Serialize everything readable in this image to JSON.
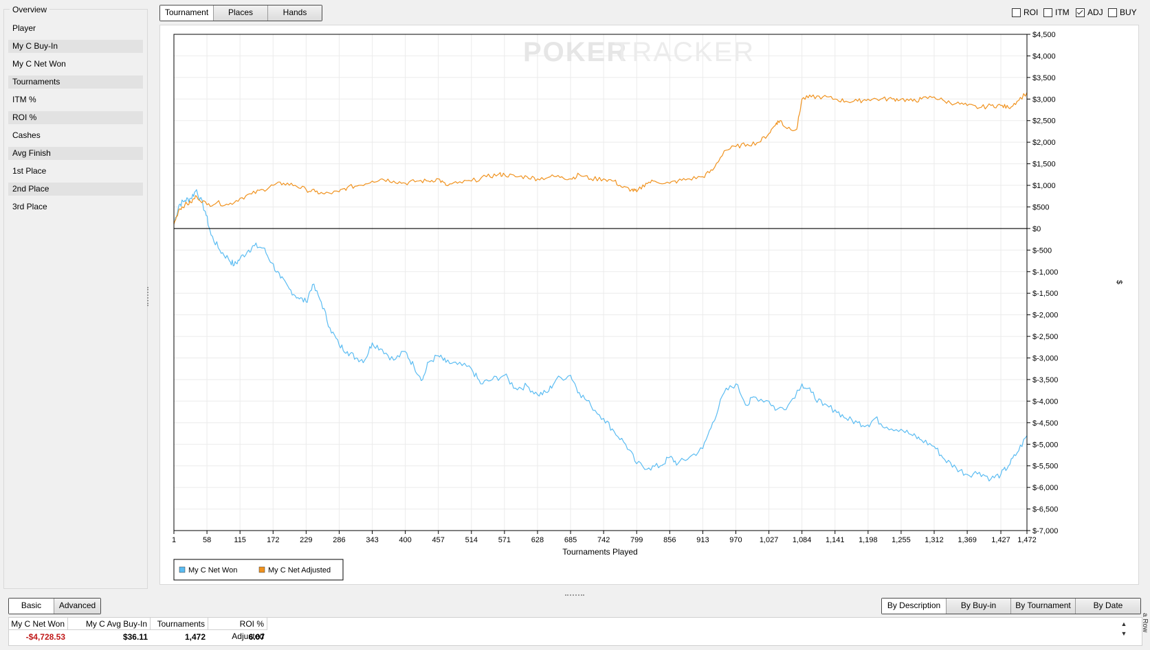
{
  "left_panel": {
    "title": "Overview",
    "stats": [
      "Player",
      "My C Buy-In",
      "My C Net Won",
      "Tournaments",
      "ITM %",
      "ROI %",
      "Cashes",
      "Avg Finish",
      "1st Place",
      "2nd Place",
      "3rd Place"
    ]
  },
  "view_tabs": {
    "tournament": "Tournament",
    "places": "Places",
    "hands": "Hands"
  },
  "options": {
    "roi": "ROI",
    "itm": "ITM",
    "adj": "ADJ",
    "buy": "BUY",
    "adj_checked": true
  },
  "watermark": {
    "poker": "POKER",
    "tracker": "TRACKER"
  },
  "chart_data": {
    "type": "line",
    "xlabel": "Tournaments Played",
    "ylabel": "$",
    "x_ticks": [
      "1",
      "58",
      "115",
      "172",
      "229",
      "286",
      "343",
      "400",
      "457",
      "514",
      "571",
      "628",
      "685",
      "742",
      "799",
      "856",
      "913",
      "970",
      "1,027",
      "1,084",
      "1,141",
      "1,198",
      "1,255",
      "1,312",
      "1,369",
      "1,427",
      "1,472"
    ],
    "y_ticks": [
      "$4,500",
      "$4,000",
      "$3,500",
      "$3,000",
      "$2,500",
      "$2,000",
      "$1,500",
      "$1,000",
      "$500",
      "$0",
      "$-500",
      "$-1,000",
      "$-1,500",
      "$-2,000",
      "$-2,500",
      "$-3,000",
      "$-3,500",
      "$-4,000",
      "$-4,500",
      "$-5,000",
      "$-5,500",
      "$-6,000",
      "$-6,500",
      "$-7,000"
    ],
    "ylim": [
      -7000,
      4500
    ],
    "xlim": [
      1,
      1472
    ],
    "grid": true,
    "legend": "bottom-left",
    "series": [
      {
        "name": "My C Net Won",
        "color": "#5bbcf2",
        "x": [
          1,
          10,
          20,
          30,
          40,
          55,
          65,
          80,
          95,
          105,
          115,
          130,
          140,
          155,
          170,
          185,
          200,
          215,
          229,
          240,
          255,
          270,
          286,
          300,
          315,
          330,
          343,
          360,
          380,
          400,
          415,
          430,
          440,
          457,
          470,
          490,
          514,
          530,
          550,
          571,
          590,
          610,
          628,
          645,
          660,
          685,
          700,
          720,
          742,
          760,
          780,
          799,
          820,
          840,
          856,
          870,
          890,
          913,
          930,
          950,
          970,
          990,
          1000,
          1027,
          1040,
          1060,
          1084,
          1100,
          1120,
          1141,
          1160,
          1180,
          1198,
          1210,
          1230,
          1255,
          1275,
          1290,
          1312,
          1330,
          1350,
          1369,
          1390,
          1410,
          1427,
          1440,
          1455,
          1472
        ],
        "y": [
          100,
          550,
          650,
          700,
          900,
          400,
          -150,
          -500,
          -700,
          -850,
          -700,
          -500,
          -400,
          -450,
          -800,
          -1150,
          -1400,
          -1600,
          -1700,
          -1300,
          -1700,
          -2300,
          -2700,
          -2850,
          -3000,
          -3050,
          -2650,
          -2800,
          -3050,
          -2850,
          -3200,
          -3500,
          -3100,
          -2950,
          -3100,
          -3150,
          -3250,
          -3600,
          -3500,
          -3400,
          -3700,
          -3650,
          -3850,
          -3800,
          -3500,
          -3400,
          -3800,
          -4100,
          -4400,
          -4700,
          -5000,
          -5450,
          -5550,
          -5500,
          -5300,
          -5450,
          -5300,
          -5100,
          -4500,
          -3800,
          -3600,
          -4100,
          -3900,
          -4000,
          -4200,
          -4100,
          -3600,
          -3800,
          -4100,
          -4200,
          -4400,
          -4500,
          -4550,
          -4400,
          -4600,
          -4650,
          -4800,
          -4900,
          -5050,
          -5350,
          -5550,
          -5700,
          -5650,
          -5800,
          -5700,
          -5500,
          -5200,
          -4800
        ]
      },
      {
        "name": "My C Net Adjusted",
        "color": "#f0921e",
        "x": [
          1,
          10,
          20,
          30,
          40,
          58,
          75,
          95,
          115,
          135,
          155,
          172,
          190,
          210,
          229,
          245,
          260,
          286,
          300,
          320,
          343,
          360,
          380,
          400,
          420,
          440,
          457,
          470,
          490,
          514,
          540,
          560,
          571,
          590,
          610,
          628,
          650,
          670,
          685,
          700,
          720,
          742,
          760,
          775,
          790,
          799,
          815,
          830,
          856,
          870,
          890,
          913,
          930,
          950,
          970,
          990,
          1010,
          1027,
          1040,
          1047,
          1055,
          1075,
          1084,
          1100,
          1120,
          1141,
          1160,
          1180,
          1198,
          1220,
          1240,
          1255,
          1275,
          1290,
          1312,
          1330,
          1350,
          1369,
          1390,
          1410,
          1427,
          1440,
          1455,
          1472
        ],
        "y": [
          100,
          450,
          550,
          600,
          750,
          550,
          600,
          550,
          700,
          800,
          900,
          1000,
          1050,
          1000,
          900,
          850,
          800,
          850,
          950,
          1000,
          1100,
          1150,
          1100,
          1050,
          1100,
          1100,
          1150,
          1000,
          1050,
          1100,
          1200,
          1250,
          1250,
          1200,
          1200,
          1150,
          1200,
          1200,
          1150,
          1250,
          1150,
          1150,
          1100,
          950,
          900,
          850,
          1050,
          1100,
          1050,
          1100,
          1150,
          1200,
          1350,
          1800,
          1900,
          1950,
          2000,
          2200,
          2450,
          2500,
          2350,
          2300,
          3000,
          3050,
          3050,
          3000,
          2950,
          2950,
          3000,
          3000,
          3000,
          3000,
          2950,
          3000,
          3050,
          2950,
          2900,
          2850,
          2800,
          2850,
          2850,
          2800,
          2950,
          3150
        ]
      }
    ]
  },
  "bottom_tabs": {
    "basic": "Basic",
    "advanced": "Advanced"
  },
  "group_buttons": [
    "By Description",
    "By Buy-in",
    "By Tournament",
    "By Date"
  ],
  "summary_table": {
    "headers": [
      "My C Net Won",
      "My C Avg Buy-In",
      "Tournaments",
      "ROI % Adjusted"
    ],
    "values": [
      "-$4,728.53",
      "$36.11",
      "1,472",
      "6.07"
    ]
  },
  "side_label": "a Row"
}
